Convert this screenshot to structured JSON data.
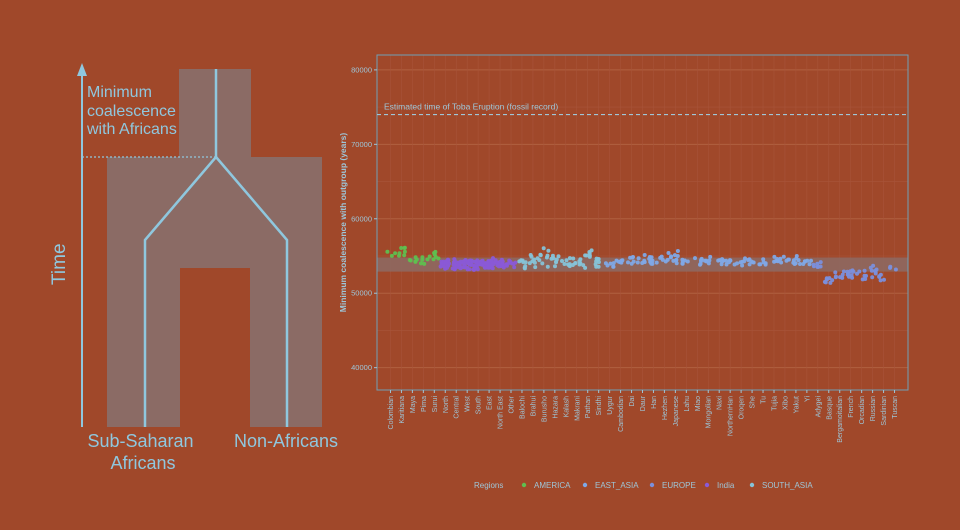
{
  "diagram": {
    "axis_label": "Time",
    "coalescence_label": [
      "Minimum",
      "coalescence",
      "with Africans"
    ],
    "left_population": [
      "Sub-Saharan",
      "Africans"
    ],
    "right_population": "Non-Africans"
  },
  "chart_data": {
    "type": "scatter",
    "title": "",
    "xlabel": "",
    "ylabel": "Minimum coalescence with outgroup (years)",
    "ylim": [
      37000,
      82000
    ],
    "yticks": [
      40000,
      50000,
      60000,
      70000,
      80000
    ],
    "ytick_labels": [
      "40000",
      "50000",
      "60000",
      "70000",
      "80000"
    ],
    "grid": true,
    "reference_line": {
      "y": 74000,
      "label": "Estimated time of Toba Eruption (fossil record)"
    },
    "shaded_band": [
      52900,
      54800
    ],
    "legend": {
      "title": "Regions",
      "position": "bottom",
      "entries": [
        {
          "name": "AMERICA",
          "color": "#5fbf4f"
        },
        {
          "name": "EAST_ASIA",
          "color": "#7fa8e6"
        },
        {
          "name": "EUROPE",
          "color": "#7b8fdc"
        },
        {
          "name": "India",
          "color": "#8a5ad6"
        },
        {
          "name": "SOUTH_ASIA",
          "color": "#86c3d8"
        }
      ]
    },
    "categories": [
      {
        "name": "Colombian",
        "region": "AMERICA",
        "n": 3,
        "center": 55200,
        "spread": 600
      },
      {
        "name": "Karitiana",
        "region": "AMERICA",
        "n": 7,
        "center": 55700,
        "spread": 1300
      },
      {
        "name": "Maya",
        "region": "AMERICA",
        "n": 6,
        "center": 54600,
        "spread": 1200
      },
      {
        "name": "Pima",
        "region": "AMERICA",
        "n": 5,
        "center": 54600,
        "spread": 1000
      },
      {
        "name": "Surui",
        "region": "AMERICA",
        "n": 7,
        "center": 55300,
        "spread": 1500
      },
      {
        "name": "North",
        "region": "India",
        "n": 24,
        "center": 53900,
        "spread": 900
      },
      {
        "name": "Central",
        "region": "India",
        "n": 24,
        "center": 53900,
        "spread": 900
      },
      {
        "name": "West",
        "region": "India",
        "n": 24,
        "center": 53900,
        "spread": 900
      },
      {
        "name": "South",
        "region": "India",
        "n": 24,
        "center": 53900,
        "spread": 900
      },
      {
        "name": "East",
        "region": "India",
        "n": 24,
        "center": 53900,
        "spread": 900
      },
      {
        "name": "North East",
        "region": "India",
        "n": 18,
        "center": 53900,
        "spread": 800
      },
      {
        "name": "Other",
        "region": "India",
        "n": 10,
        "center": 54000,
        "spread": 700
      },
      {
        "name": "Balochi",
        "region": "SOUTH_ASIA",
        "n": 8,
        "center": 53900,
        "spread": 900
      },
      {
        "name": "Brahui",
        "region": "SOUTH_ASIA",
        "n": 8,
        "center": 54400,
        "spread": 1000
      },
      {
        "name": "Burusho",
        "region": "SOUTH_ASIA",
        "n": 9,
        "center": 54800,
        "spread": 1300
      },
      {
        "name": "Hazara",
        "region": "SOUTH_ASIA",
        "n": 8,
        "center": 54300,
        "spread": 1000
      },
      {
        "name": "Kalash",
        "region": "SOUTH_ASIA",
        "n": 8,
        "center": 54300,
        "spread": 900
      },
      {
        "name": "Makrani",
        "region": "SOUTH_ASIA",
        "n": 8,
        "center": 54200,
        "spread": 1000
      },
      {
        "name": "Pathan",
        "region": "SOUTH_ASIA",
        "n": 9,
        "center": 54800,
        "spread": 1500
      },
      {
        "name": "Sindhi",
        "region": "SOUTH_ASIA",
        "n": 8,
        "center": 54300,
        "spread": 1100
      },
      {
        "name": "Uygur",
        "region": "EAST_ASIA",
        "n": 6,
        "center": 54000,
        "spread": 900
      },
      {
        "name": "Cambodian",
        "region": "EAST_ASIA",
        "n": 6,
        "center": 54100,
        "spread": 900
      },
      {
        "name": "Dai",
        "region": "EAST_ASIA",
        "n": 6,
        "center": 54500,
        "spread": 800
      },
      {
        "name": "Daur",
        "region": "EAST_ASIA",
        "n": 6,
        "center": 54600,
        "spread": 1100
      },
      {
        "name": "Han",
        "region": "EAST_ASIA",
        "n": 10,
        "center": 54300,
        "spread": 1000
      },
      {
        "name": "Hezhen",
        "region": "EAST_ASIA",
        "n": 6,
        "center": 54800,
        "spread": 1100
      },
      {
        "name": "Japanese",
        "region": "EAST_ASIA",
        "n": 9,
        "center": 54600,
        "spread": 1300
      },
      {
        "name": "Lahu",
        "region": "EAST_ASIA",
        "n": 6,
        "center": 54200,
        "spread": 700
      },
      {
        "name": "Miao",
        "region": "EAST_ASIA",
        "n": 6,
        "center": 54200,
        "spread": 600
      },
      {
        "name": "Mongolian",
        "region": "EAST_ASIA",
        "n": 6,
        "center": 54300,
        "spread": 700
      },
      {
        "name": "Naxi",
        "region": "EAST_ASIA",
        "n": 6,
        "center": 54300,
        "spread": 700
      },
      {
        "name": "NorthernHan",
        "region": "EAST_ASIA",
        "n": 6,
        "center": 54200,
        "spread": 700
      },
      {
        "name": "Oroqen",
        "region": "EAST_ASIA",
        "n": 6,
        "center": 54300,
        "spread": 800
      },
      {
        "name": "She",
        "region": "EAST_ASIA",
        "n": 6,
        "center": 54100,
        "spread": 700
      },
      {
        "name": "Tu",
        "region": "EAST_ASIA",
        "n": 6,
        "center": 54100,
        "spread": 900
      },
      {
        "name": "Tujia",
        "region": "EAST_ASIA",
        "n": 6,
        "center": 54400,
        "spread": 800
      },
      {
        "name": "Xibo",
        "region": "EAST_ASIA",
        "n": 6,
        "center": 54600,
        "spread": 1000
      },
      {
        "name": "Yakut",
        "region": "EAST_ASIA",
        "n": 8,
        "center": 54300,
        "spread": 900
      },
      {
        "name": "Yi",
        "region": "EAST_ASIA",
        "n": 6,
        "center": 54000,
        "spread": 700
      },
      {
        "name": "Adygei",
        "region": "EUROPE",
        "n": 7,
        "center": 53700,
        "spread": 900
      },
      {
        "name": "Basque",
        "region": "EUROPE",
        "n": 8,
        "center": 51500,
        "spread": 700
      },
      {
        "name": "Bergamoitalian",
        "region": "EUROPE",
        "n": 7,
        "center": 52600,
        "spread": 900
      },
      {
        "name": "French",
        "region": "EUROPE",
        "n": 9,
        "center": 52800,
        "spread": 900
      },
      {
        "name": "Orcadian",
        "region": "EUROPE",
        "n": 7,
        "center": 52600,
        "spread": 900
      },
      {
        "name": "Russian",
        "region": "EUROPE",
        "n": 8,
        "center": 53000,
        "spread": 1000
      },
      {
        "name": "Sardinian",
        "region": "EUROPE",
        "n": 5,
        "center": 52000,
        "spread": 700
      },
      {
        "name": "Tuscan",
        "region": "EUROPE",
        "n": 3,
        "center": 53300,
        "spread": 900
      }
    ]
  }
}
